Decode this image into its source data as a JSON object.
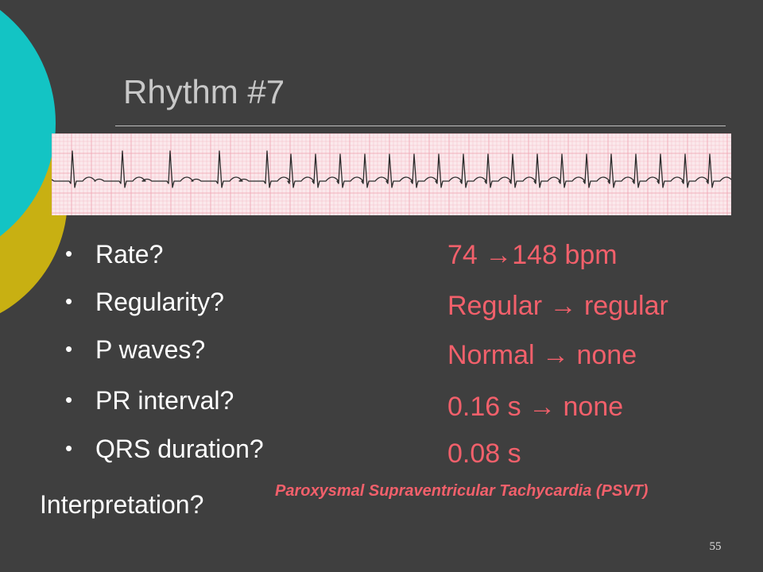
{
  "slide": {
    "title": "Rhythm #7",
    "number": "55"
  },
  "colors": {
    "background": "#3f3f3f",
    "teal": "#13c4c4",
    "gold": "#c8b012",
    "answer": "#f2606b",
    "ecg_paper": "#fbe9ec",
    "ecg_grid": "#f0a6b4",
    "ecg_trace": "#2b2b2b"
  },
  "questions": [
    {
      "label": "Rate?",
      "answer": "74 →148 bpm"
    },
    {
      "label": "Regularity?",
      "answer": "Regular → regular"
    },
    {
      "label": "P waves?",
      "answer": "Normal → none"
    },
    {
      "label": "PR interval?",
      "answer": "0.16 s → none"
    },
    {
      "label": "QRS duration?",
      "answer": "0.08 s"
    }
  ],
  "interpretation": {
    "label": "Interpretation?",
    "answer": "Paroxysmal Supraventricular Tachycardia (PSVT)"
  },
  "ecg_strip": {
    "icon": "ecg-rhythm-strip"
  }
}
